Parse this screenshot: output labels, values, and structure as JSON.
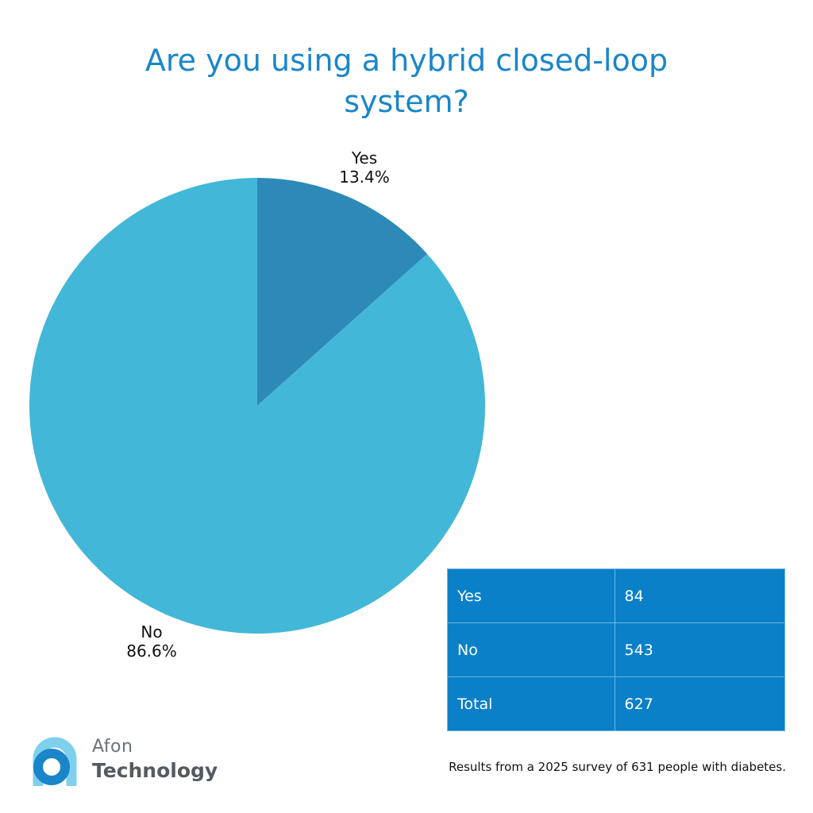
{
  "colors": {
    "title": "#1a86c9",
    "yes_slice": "#2d8ab8",
    "no_slice": "#43b7d7",
    "table_bg": "#0a80c8",
    "table_border": "#6fb6e2",
    "logo_dark": "#1a86c9",
    "logo_light": "#7fd0ee"
  },
  "chart_data": {
    "type": "pie",
    "title": "Are you using a hybrid closed-loop system?",
    "slices": [
      {
        "label": "Yes",
        "value": 84,
        "percent_label": "13.4%"
      },
      {
        "label": "No",
        "value": 543,
        "percent_label": "86.6%"
      }
    ],
    "start": "12 o'clock",
    "direction": "clockwise"
  },
  "table": {
    "rows": [
      {
        "label": "Yes",
        "value": "84"
      },
      {
        "label": "No",
        "value": "543"
      },
      {
        "label": "Total",
        "value": "627"
      }
    ]
  },
  "logo": {
    "word1": "Afon",
    "word2": "Technology",
    "icon": "afon-logo-icon"
  },
  "footnote": "Results from a 2025 survey of 631 people with diabetes."
}
